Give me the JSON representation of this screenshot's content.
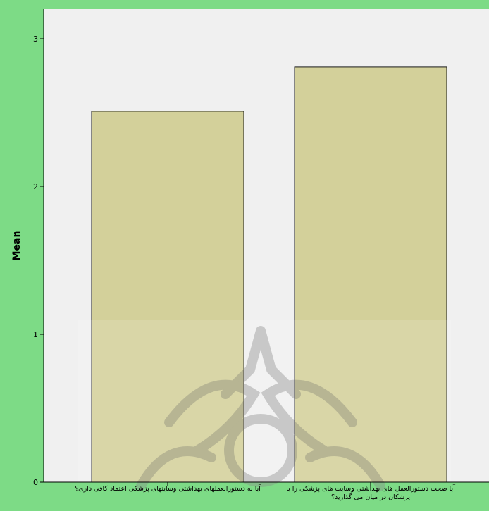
{
  "chart_data": {
    "type": "bar",
    "ylabel": "Mean",
    "ylim": [
      0,
      3.2
    ],
    "yticks": [
      "0",
      "1",
      "2",
      "3"
    ],
    "categories": [
      [
        "آیا به دستورالعملهای بهداشتی وسایتهای پزشکی اعتماد کافی داری؟"
      ],
      [
        "آیا صحت دستورالعمل های بهداشتی وسایت های پزشکی را با",
        "پزشکان در میان می گذارید؟"
      ]
    ],
    "values": [
      2.51,
      2.81
    ],
    "grid": false,
    "legend": "none",
    "colors": {
      "frame": "#7ddb86",
      "plot_background": "#f0f0f0",
      "bar_fill": "#d3d09a",
      "bar_stroke": "#1a1a1a",
      "axis": "#000000",
      "watermark": "#8a8a8a"
    }
  }
}
